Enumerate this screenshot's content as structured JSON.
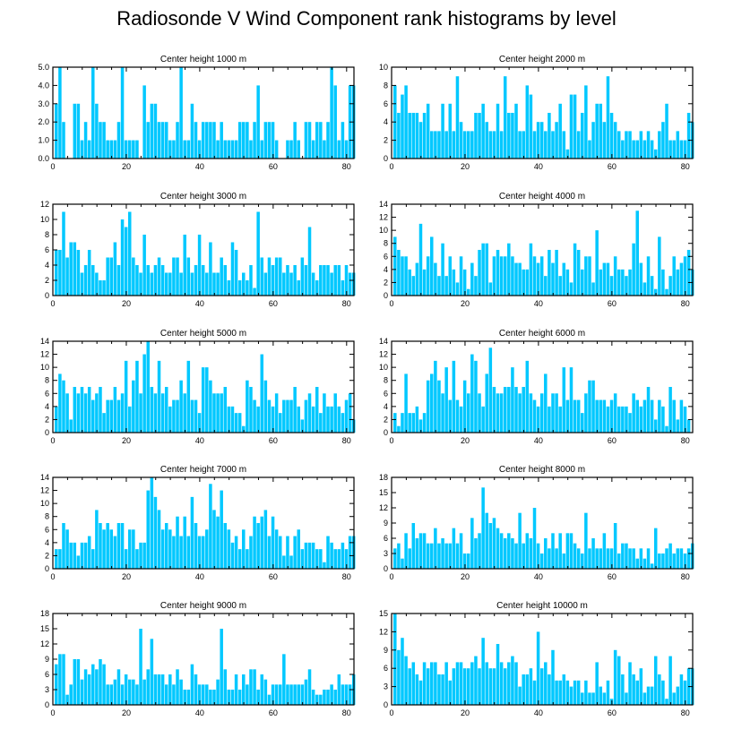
{
  "figure_title": "Radiosonde V Wind Component rank histograms by level",
  "colors": {
    "bar": "#00c8ff",
    "axis": "#000000",
    "background": "#ffffff"
  },
  "chart_data": [
    {
      "type": "bar",
      "title": "Center height 1000 m",
      "x_start": 1,
      "xlim": [
        0,
        82
      ],
      "ylim": [
        0,
        5
      ],
      "xticks": [
        0,
        20,
        40,
        60,
        80
      ],
      "yticks": [
        0,
        1,
        2,
        3,
        4,
        5
      ],
      "ytick_labels": [
        "0.0",
        "1.0",
        "2.0",
        "3.0",
        "4.0",
        "5.0"
      ],
      "values": [
        3,
        5,
        2,
        0,
        0,
        3,
        3,
        1,
        2,
        1,
        5,
        3,
        2,
        2,
        1,
        1,
        1,
        2,
        5,
        1,
        1,
        1,
        1,
        0,
        4,
        2,
        3,
        3,
        2,
        2,
        2,
        1,
        1,
        2,
        5,
        1,
        1,
        3,
        2,
        1,
        2,
        2,
        2,
        2,
        1,
        2,
        1,
        1,
        1,
        1,
        2,
        2,
        2,
        1,
        2,
        4,
        1,
        2,
        2,
        2,
        1,
        0,
        0,
        1,
        1,
        2,
        1,
        0,
        2,
        2,
        1,
        2,
        2,
        1,
        2,
        5,
        4,
        1,
        2,
        1,
        4,
        4
      ]
    },
    {
      "type": "bar",
      "title": "Center height 2000 m",
      "x_start": 1,
      "xlim": [
        0,
        82
      ],
      "ylim": [
        0,
        10
      ],
      "xticks": [
        0,
        20,
        40,
        60,
        80
      ],
      "yticks": [
        0,
        2,
        4,
        6,
        8,
        10
      ],
      "ytick_labels": [
        "0",
        "2",
        "4",
        "6",
        "8",
        "10"
      ],
      "values": [
        8,
        5,
        7,
        8,
        5,
        5,
        5,
        4,
        5,
        6,
        3,
        3,
        3,
        6,
        3,
        6,
        3,
        9,
        4,
        3,
        3,
        3,
        5,
        5,
        6,
        4,
        3,
        3,
        6,
        3,
        9,
        5,
        5,
        6,
        3,
        3,
        8,
        7,
        3,
        4,
        4,
        3,
        5,
        3,
        4,
        6,
        3,
        1,
        7,
        7,
        3,
        5,
        8,
        2,
        4,
        6,
        6,
        4,
        9,
        5,
        4,
        3,
        2,
        3,
        3,
        2,
        2,
        3,
        2,
        3,
        2,
        1,
        3,
        4,
        6,
        2,
        2,
        3,
        2,
        2,
        5,
        4
      ]
    },
    {
      "type": "bar",
      "title": "Center height 3000 m",
      "x_start": 1,
      "xlim": [
        0,
        82
      ],
      "ylim": [
        0,
        12
      ],
      "xticks": [
        0,
        20,
        40,
        60,
        80
      ],
      "yticks": [
        0,
        2,
        4,
        6,
        8,
        10,
        12
      ],
      "ytick_labels": [
        "0",
        "2",
        "4",
        "6",
        "8",
        "10",
        "12"
      ],
      "values": [
        6,
        6,
        11,
        5,
        7,
        7,
        6,
        3,
        4,
        6,
        4,
        3,
        2,
        2,
        5,
        5,
        7,
        4,
        10,
        9,
        11,
        5,
        4,
        3,
        8,
        4,
        3,
        4,
        5,
        4,
        3,
        3,
        5,
        5,
        3,
        8,
        5,
        3,
        4,
        8,
        4,
        3,
        7,
        3,
        3,
        5,
        4,
        2,
        7,
        6,
        2,
        3,
        2,
        4,
        1,
        11,
        5,
        3,
        5,
        4,
        5,
        5,
        3,
        4,
        3,
        4,
        2,
        5,
        4,
        9,
        3,
        2,
        4,
        4,
        4,
        3,
        4,
        4,
        2,
        4,
        3,
        3
      ]
    },
    {
      "type": "bar",
      "title": "Center height 4000 m",
      "x_start": 1,
      "xlim": [
        0,
        82
      ],
      "ylim": [
        0,
        14
      ],
      "xticks": [
        0,
        20,
        40,
        60,
        80
      ],
      "yticks": [
        0,
        2,
        4,
        6,
        8,
        10,
        12,
        14
      ],
      "ytick_labels": [
        "0",
        "2",
        "4",
        "6",
        "8",
        "10",
        "12",
        "14"
      ],
      "values": [
        9,
        7,
        6,
        6,
        4,
        3,
        5,
        11,
        4,
        6,
        9,
        5,
        3,
        8,
        3,
        6,
        4,
        2,
        6,
        4,
        1,
        5,
        3,
        7,
        8,
        8,
        2,
        6,
        7,
        6,
        6,
        8,
        6,
        5,
        5,
        4,
        4,
        8,
        6,
        5,
        6,
        3,
        7,
        5,
        7,
        3,
        5,
        4,
        2,
        8,
        7,
        4,
        6,
        6,
        2,
        10,
        4,
        5,
        5,
        3,
        6,
        4,
        4,
        3,
        4,
        8,
        13,
        5,
        2,
        6,
        3,
        1,
        9,
        4,
        1,
        3,
        6,
        4,
        5,
        6,
        7,
        4
      ]
    },
    {
      "type": "bar",
      "title": "Center height 5000 m",
      "x_start": 1,
      "xlim": [
        0,
        82
      ],
      "ylim": [
        0,
        14
      ],
      "xticks": [
        0,
        20,
        40,
        60,
        80
      ],
      "yticks": [
        0,
        2,
        4,
        6,
        8,
        10,
        12,
        14
      ],
      "ytick_labels": [
        "0",
        "2",
        "4",
        "6",
        "8",
        "10",
        "12",
        "14"
      ],
      "values": [
        4,
        9,
        8,
        6,
        2,
        7,
        6,
        7,
        6,
        7,
        5,
        6,
        7,
        3,
        5,
        5,
        7,
        5,
        6,
        11,
        4,
        8,
        11,
        6,
        12,
        14,
        7,
        6,
        11,
        6,
        7,
        4,
        5,
        5,
        8,
        6,
        11,
        5,
        5,
        3,
        10,
        10,
        8,
        6,
        6,
        6,
        7,
        4,
        4,
        3,
        3,
        1,
        8,
        7,
        5,
        4,
        12,
        8,
        5,
        4,
        6,
        3,
        5,
        5,
        5,
        7,
        4,
        2,
        5,
        6,
        4,
        7,
        3,
        6,
        4,
        4,
        6,
        4,
        3,
        5,
        6,
        2
      ]
    },
    {
      "type": "bar",
      "title": "Center height 6000 m",
      "x_start": 1,
      "xlim": [
        0,
        82
      ],
      "ylim": [
        0,
        14
      ],
      "xticks": [
        0,
        20,
        40,
        60,
        80
      ],
      "yticks": [
        0,
        2,
        4,
        6,
        8,
        10,
        12,
        14
      ],
      "ytick_labels": [
        "0",
        "2",
        "4",
        "6",
        "8",
        "10",
        "12",
        "14"
      ],
      "values": [
        3,
        1,
        3,
        9,
        3,
        3,
        4,
        2,
        3,
        8,
        9,
        11,
        8,
        6,
        10,
        5,
        11,
        5,
        4,
        8,
        6,
        12,
        11,
        6,
        4,
        9,
        13,
        7,
        6,
        6,
        7,
        7,
        10,
        7,
        6,
        7,
        11,
        6,
        5,
        4,
        6,
        9,
        4,
        6,
        6,
        4,
        10,
        5,
        10,
        5,
        5,
        3,
        6,
        8,
        8,
        5,
        5,
        5,
        4,
        5,
        6,
        4,
        4,
        4,
        3,
        6,
        5,
        4,
        5,
        7,
        5,
        2,
        5,
        4,
        1,
        7,
        5,
        2,
        5,
        4,
        2,
        0
      ]
    },
    {
      "type": "bar",
      "title": "Center height 7000 m",
      "x_start": 1,
      "xlim": [
        0,
        82
      ],
      "ylim": [
        0,
        14
      ],
      "xticks": [
        0,
        20,
        40,
        60,
        80
      ],
      "yticks": [
        0,
        2,
        4,
        6,
        8,
        10,
        12,
        14
      ],
      "ytick_labels": [
        "0",
        "2",
        "4",
        "6",
        "8",
        "10",
        "12",
        "14"
      ],
      "values": [
        3,
        3,
        7,
        6,
        4,
        4,
        2,
        4,
        4,
        5,
        3,
        9,
        7,
        6,
        7,
        6,
        5,
        7,
        7,
        3,
        6,
        6,
        3,
        4,
        4,
        12,
        14,
        11,
        9,
        6,
        7,
        6,
        5,
        8,
        5,
        8,
        5,
        11,
        7,
        5,
        5,
        6,
        13,
        9,
        8,
        12,
        7,
        6,
        4,
        5,
        3,
        6,
        3,
        5,
        8,
        7,
        8,
        9,
        5,
        8,
        6,
        5,
        2,
        5,
        2,
        5,
        6,
        3,
        4,
        4,
        4,
        3,
        3,
        1,
        5,
        4,
        3,
        3,
        4,
        3,
        5,
        5
      ]
    },
    {
      "type": "bar",
      "title": "Center height 8000 m",
      "x_start": 1,
      "xlim": [
        0,
        82
      ],
      "ylim": [
        0,
        18
      ],
      "xticks": [
        0,
        20,
        40,
        60,
        80
      ],
      "yticks": [
        0,
        3,
        6,
        9,
        12,
        15,
        18
      ],
      "ytick_labels": [
        "0",
        "3",
        "6",
        "9",
        "12",
        "15",
        "18"
      ],
      "values": [
        4,
        5,
        2,
        7,
        4,
        9,
        6,
        7,
        7,
        5,
        5,
        8,
        5,
        6,
        5,
        5,
        8,
        5,
        7,
        3,
        3,
        10,
        6,
        7,
        16,
        11,
        9,
        10,
        8,
        7,
        6,
        7,
        6,
        5,
        11,
        5,
        7,
        6,
        12,
        5,
        3,
        6,
        4,
        7,
        4,
        7,
        3,
        7,
        7,
        5,
        4,
        3,
        11,
        4,
        6,
        4,
        4,
        7,
        4,
        4,
        9,
        3,
        5,
        5,
        4,
        4,
        2,
        4,
        2,
        4,
        1,
        8,
        3,
        3,
        4,
        5,
        3,
        4,
        4,
        3,
        4,
        5
      ]
    },
    {
      "type": "bar",
      "title": "Center height 9000 m",
      "x_start": 1,
      "xlim": [
        0,
        82
      ],
      "ylim": [
        0,
        18
      ],
      "xticks": [
        0,
        20,
        40,
        60,
        80
      ],
      "yticks": [
        0,
        3,
        6,
        9,
        12,
        15,
        18
      ],
      "ytick_labels": [
        "0",
        "3",
        "6",
        "9",
        "12",
        "15",
        "18"
      ],
      "values": [
        8,
        10,
        10,
        2,
        4,
        9,
        9,
        5,
        7,
        6,
        8,
        7,
        9,
        8,
        4,
        4,
        5,
        7,
        4,
        6,
        5,
        5,
        4,
        15,
        5,
        7,
        13,
        6,
        6,
        6,
        4,
        6,
        4,
        7,
        5,
        3,
        3,
        8,
        6,
        4,
        4,
        4,
        3,
        3,
        5,
        15,
        7,
        3,
        3,
        6,
        3,
        6,
        4,
        7,
        7,
        3,
        6,
        5,
        2,
        4,
        4,
        4,
        10,
        4,
        4,
        4,
        4,
        4,
        5,
        7,
        3,
        2,
        2,
        3,
        3,
        4,
        3,
        6,
        4,
        4,
        4,
        6
      ]
    },
    {
      "type": "bar",
      "title": "Center height 10000 m",
      "x_start": 1,
      "xlim": [
        0,
        82
      ],
      "ylim": [
        0,
        15
      ],
      "xticks": [
        0,
        20,
        40,
        60,
        80
      ],
      "yticks": [
        0,
        3,
        6,
        9,
        12,
        15
      ],
      "ytick_labels": [
        "0",
        "3",
        "6",
        "9",
        "12",
        "15"
      ],
      "values": [
        15,
        9,
        11,
        8,
        6,
        7,
        5,
        4,
        7,
        6,
        7,
        7,
        5,
        5,
        7,
        4,
        6,
        7,
        7,
        6,
        6,
        7,
        8,
        6,
        11,
        7,
        6,
        6,
        10,
        7,
        6,
        7,
        8,
        7,
        3,
        5,
        5,
        6,
        4,
        12,
        6,
        7,
        5,
        9,
        4,
        4,
        5,
        4,
        3,
        4,
        4,
        2,
        4,
        2,
        2,
        7,
        3,
        2,
        4,
        1,
        9,
        8,
        5,
        2,
        7,
        5,
        4,
        6,
        2,
        3,
        3,
        8,
        5,
        4,
        1,
        8,
        2,
        3,
        5,
        4,
        6,
        6
      ]
    }
  ]
}
